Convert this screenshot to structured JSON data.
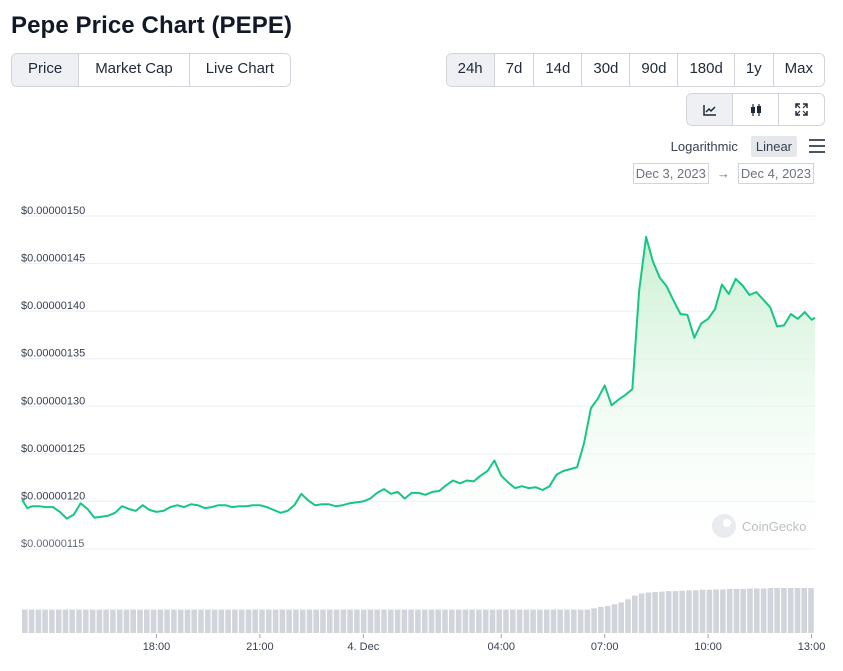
{
  "title": "Pepe Price Chart (PEPE)",
  "tabs": [
    "Price",
    "Market Cap",
    "Live Chart"
  ],
  "active_tab": "Price",
  "ranges": [
    "24h",
    "7d",
    "14d",
    "30d",
    "90d",
    "180d",
    "1y",
    "Max"
  ],
  "active_range": "24h",
  "chart_types": [
    "line-chart-icon",
    "candlestick-icon",
    "expand-icon"
  ],
  "scale": {
    "log_label": "Logarithmic",
    "linear_label": "Linear",
    "active": "Linear"
  },
  "date_range": {
    "from": "Dec 3, 2023",
    "arrow": "→",
    "to": "Dec 4, 2023"
  },
  "watermark": "CoinGecko",
  "colors": {
    "line": "#16c784",
    "fill_top": "#c6efcf",
    "accent_bg": "#eef0f3"
  },
  "chart_data": {
    "type": "area",
    "ylim": [
      1.15e-06,
      1.5e-06
    ],
    "yticks": [
      "$0.00000150",
      "$0.00000145",
      "$0.00000140",
      "$0.00000135",
      "$0.00000130",
      "$0.00000125",
      "$0.00000120",
      "$0.00000115"
    ],
    "ytick_values": [
      1.5e-06,
      1.45e-06,
      1.4e-06,
      1.35e-06,
      1.3e-06,
      1.25e-06,
      1.2e-06,
      1.15e-06
    ],
    "xlim": [
      14.1,
      37.1
    ],
    "xticks": [
      "18:00",
      "21:00",
      "4. Dec",
      "04:00",
      "07:00",
      "10:00",
      "13:00"
    ],
    "xtick_values": [
      18,
      21,
      24,
      28,
      31,
      34,
      37
    ],
    "x": [
      14.1,
      14.25,
      14.4,
      14.6,
      14.8,
      15.0,
      15.2,
      15.4,
      15.6,
      15.8,
      16.0,
      16.2,
      16.4,
      16.6,
      16.8,
      17.0,
      17.2,
      17.4,
      17.6,
      17.8,
      18.0,
      18.2,
      18.4,
      18.6,
      18.8,
      19.0,
      19.2,
      19.4,
      19.6,
      19.8,
      20.0,
      20.2,
      20.4,
      20.6,
      20.8,
      21.0,
      21.2,
      21.4,
      21.6,
      21.8,
      22.0,
      22.2,
      22.4,
      22.6,
      22.8,
      23.0,
      23.2,
      23.4,
      23.6,
      23.8,
      24.0,
      24.2,
      24.4,
      24.6,
      24.8,
      25.0,
      25.2,
      25.4,
      25.6,
      25.8,
      26.0,
      26.2,
      26.4,
      26.6,
      26.8,
      27.0,
      27.2,
      27.4,
      27.6,
      27.8,
      28.0,
      28.2,
      28.4,
      28.6,
      28.8,
      29.0,
      29.2,
      29.4,
      29.6,
      29.8,
      30.0,
      30.2,
      30.4,
      30.6,
      30.8,
      31.0,
      31.2,
      31.4,
      31.6,
      31.8,
      32.0,
      32.2,
      32.4,
      32.6,
      32.8,
      33.0,
      33.2,
      33.4,
      33.6,
      33.8,
      34.0,
      34.2,
      34.4,
      34.6,
      34.8,
      35.0,
      35.2,
      35.4,
      35.6,
      35.8,
      36.0,
      36.2,
      36.4,
      36.6,
      36.8,
      37.0,
      37.1
    ],
    "y": [
      1.202e-06,
      1.193e-06,
      1.195e-06,
      1.195e-06,
      1.194e-06,
      1.194e-06,
      1.189e-06,
      1.182e-06,
      1.186e-06,
      1.198e-06,
      1.192e-06,
      1.183e-06,
      1.184e-06,
      1.185e-06,
      1.188e-06,
      1.195e-06,
      1.192e-06,
      1.19e-06,
      1.196e-06,
      1.191e-06,
      1.189e-06,
      1.19e-06,
      1.194e-06,
      1.196e-06,
      1.194e-06,
      1.197e-06,
      1.196e-06,
      1.193e-06,
      1.194e-06,
      1.196e-06,
      1.196e-06,
      1.194e-06,
      1.195e-06,
      1.195e-06,
      1.196e-06,
      1.196e-06,
      1.194e-06,
      1.191e-06,
      1.188e-06,
      1.19e-06,
      1.196e-06,
      1.208e-06,
      1.201e-06,
      1.196e-06,
      1.197e-06,
      1.197e-06,
      1.195e-06,
      1.196e-06,
      1.198e-06,
      1.199e-06,
      1.2e-06,
      1.203e-06,
      1.209e-06,
      1.213e-06,
      1.208e-06,
      1.21e-06,
      1.203e-06,
      1.209e-06,
      1.209e-06,
      1.207e-06,
      1.21e-06,
      1.211e-06,
      1.217e-06,
      1.222e-06,
      1.219e-06,
      1.222e-06,
      1.221e-06,
      1.227e-06,
      1.232e-06,
      1.243e-06,
      1.227e-06,
      1.22e-06,
      1.214e-06,
      1.216e-06,
      1.214e-06,
      1.215e-06,
      1.212e-06,
      1.216e-06,
      1.228e-06,
      1.232e-06,
      1.234e-06,
      1.236e-06,
      1.261e-06,
      1.298e-06,
      1.308e-06,
      1.322e-06,
      1.301e-06,
      1.307e-06,
      1.312e-06,
      1.318e-06,
      1.422e-06,
      1.478e-06,
      1.452e-06,
      1.435e-06,
      1.426e-06,
      1.411e-06,
      1.397e-06,
      1.396e-06,
      1.372e-06,
      1.387e-06,
      1.392e-06,
      1.402e-06,
      1.428e-06,
      1.418e-06,
      1.434e-06,
      1.427e-06,
      1.417e-06,
      1.42e-06,
      1.412e-06,
      1.404e-06,
      1.384e-06,
      1.385e-06,
      1.397e-06,
      1.392e-06,
      1.399e-06,
      1.391e-06,
      1.393e-06
    ],
    "volume_bars": [
      0.52,
      0.52,
      0.52,
      0.52,
      0.52,
      0.52,
      0.52,
      0.52,
      0.52,
      0.52,
      0.52,
      0.52,
      0.52,
      0.52,
      0.52,
      0.52,
      0.52,
      0.52,
      0.52,
      0.52,
      0.52,
      0.52,
      0.52,
      0.52,
      0.52,
      0.52,
      0.52,
      0.52,
      0.52,
      0.52,
      0.52,
      0.52,
      0.52,
      0.52,
      0.52,
      0.52,
      0.52,
      0.52,
      0.52,
      0.52,
      0.52,
      0.52,
      0.52,
      0.52,
      0.52,
      0.52,
      0.52,
      0.52,
      0.52,
      0.52,
      0.52,
      0.52,
      0.52,
      0.52,
      0.52,
      0.52,
      0.52,
      0.52,
      0.52,
      0.52,
      0.52,
      0.52,
      0.52,
      0.52,
      0.52,
      0.52,
      0.52,
      0.52,
      0.52,
      0.52,
      0.52,
      0.52,
      0.52,
      0.52,
      0.52,
      0.52,
      0.52,
      0.52,
      0.52,
      0.52,
      0.52,
      0.52,
      0.52,
      0.52,
      0.55,
      0.58,
      0.6,
      0.64,
      0.68,
      0.75,
      0.83,
      0.88,
      0.9,
      0.91,
      0.92,
      0.93,
      0.93,
      0.94,
      0.95,
      0.95,
      0.96,
      0.96,
      0.97,
      0.97,
      0.98,
      0.98,
      0.98,
      0.99,
      0.99,
      0.99,
      1.0,
      1.0,
      1.0,
      1.0,
      1.0,
      1.0,
      1.0
    ],
    "grid": true,
    "legend": "none"
  }
}
